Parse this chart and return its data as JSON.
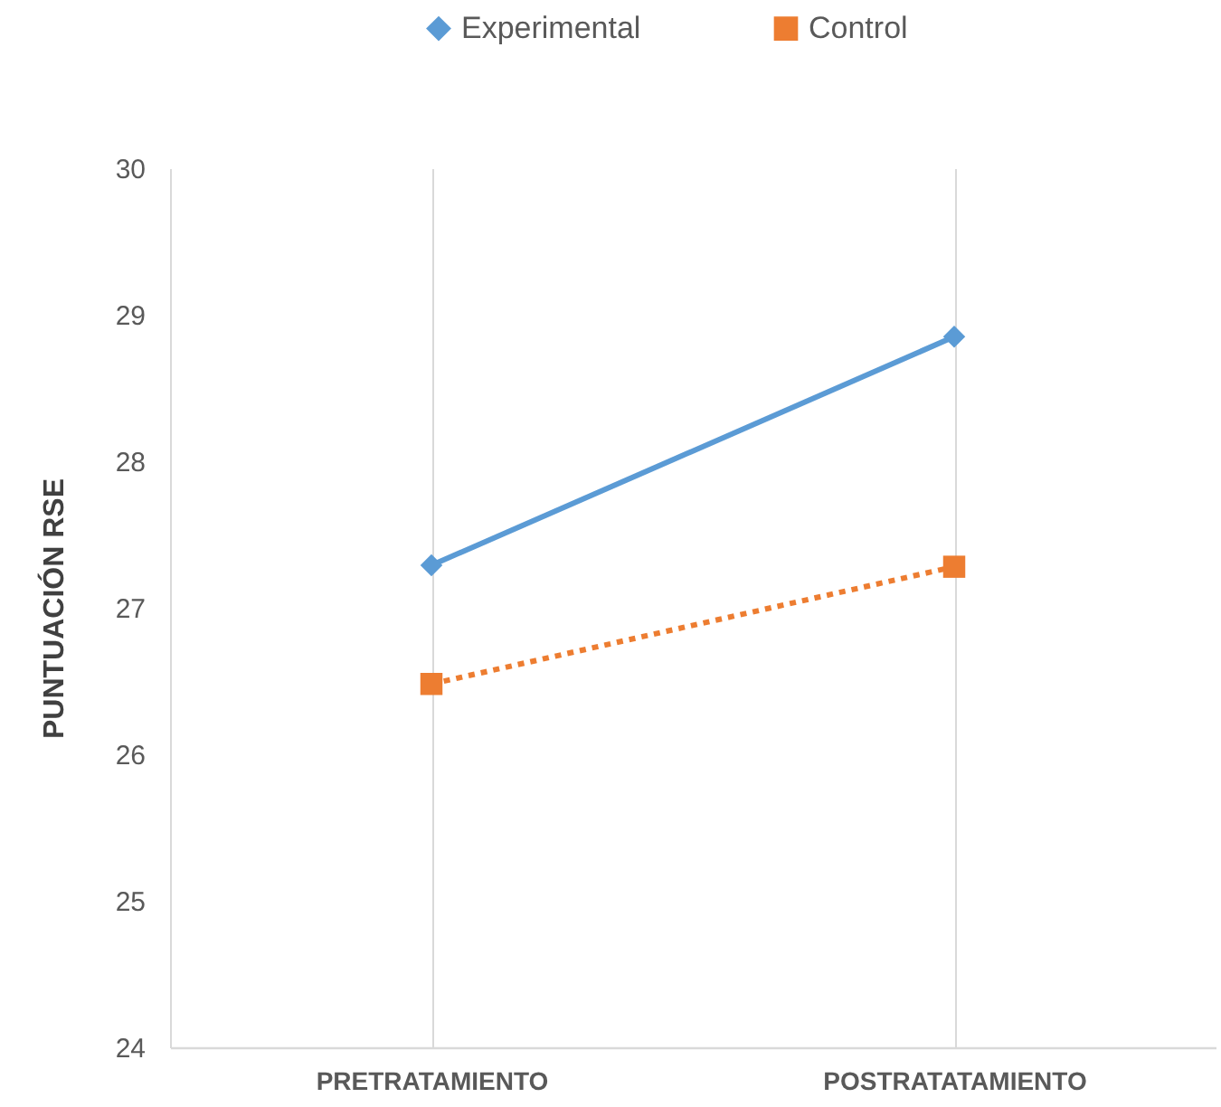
{
  "chart_data": {
    "type": "line",
    "ylabel": "PUNTUACIÓN RSE",
    "categories": [
      "PRETRATAMIENTO",
      "POSTRATATAMIENTO"
    ],
    "series": [
      {
        "name": "Experimental",
        "color": "#5b9bd5",
        "values": [
          27.29,
          28.85
        ],
        "marker": "diamond",
        "line_style": "solid"
      },
      {
        "name": "Control",
        "color": "#ed7d31",
        "values": [
          26.48,
          27.28
        ],
        "marker": "square",
        "line_style": "dotted"
      }
    ],
    "ylim": [
      24,
      30
    ],
    "yticks": [
      24,
      25,
      26,
      27,
      28,
      29,
      30
    ],
    "grid": "x",
    "legend": "top"
  }
}
